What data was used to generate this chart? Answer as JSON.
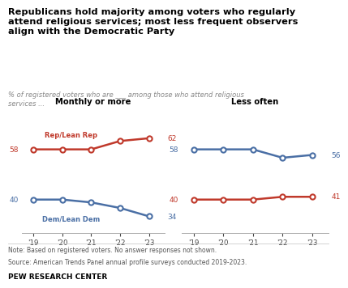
{
  "title": "Republicans hold majority among voters who regularly\nattend religious services; most less frequent observers\nalign with the Democratic Party",
  "subtitle": "% of registered voters who are ___ among those who attend religious\nservices ...",
  "panel1_title": "Monthly or more",
  "panel2_title": "Less often",
  "years": [
    2019,
    2020,
    2021,
    2022,
    2023
  ],
  "year_labels": [
    "'19",
    "'20",
    "'21",
    "'22",
    "'23"
  ],
  "panel1_rep": [
    58,
    58,
    58,
    61,
    62
  ],
  "panel1_dem": [
    40,
    40,
    39,
    37,
    34
  ],
  "panel2_dem": [
    58,
    58,
    58,
    55,
    56
  ],
  "panel2_rep": [
    40,
    40,
    40,
    41,
    41
  ],
  "rep_color": "#c0392b",
  "dem_color": "#4a6fa5",
  "rep_label": "Rep/Lean Rep",
  "dem_label": "Dem/Lean Dem",
  "note1": "Note: Based on registered voters. No answer responses not shown.",
  "note2": "Source: American Trends Panel annual profile surveys conducted 2019-2023.",
  "source_label": "PEW RESEARCH CENTER",
  "background_color": "#ffffff"
}
